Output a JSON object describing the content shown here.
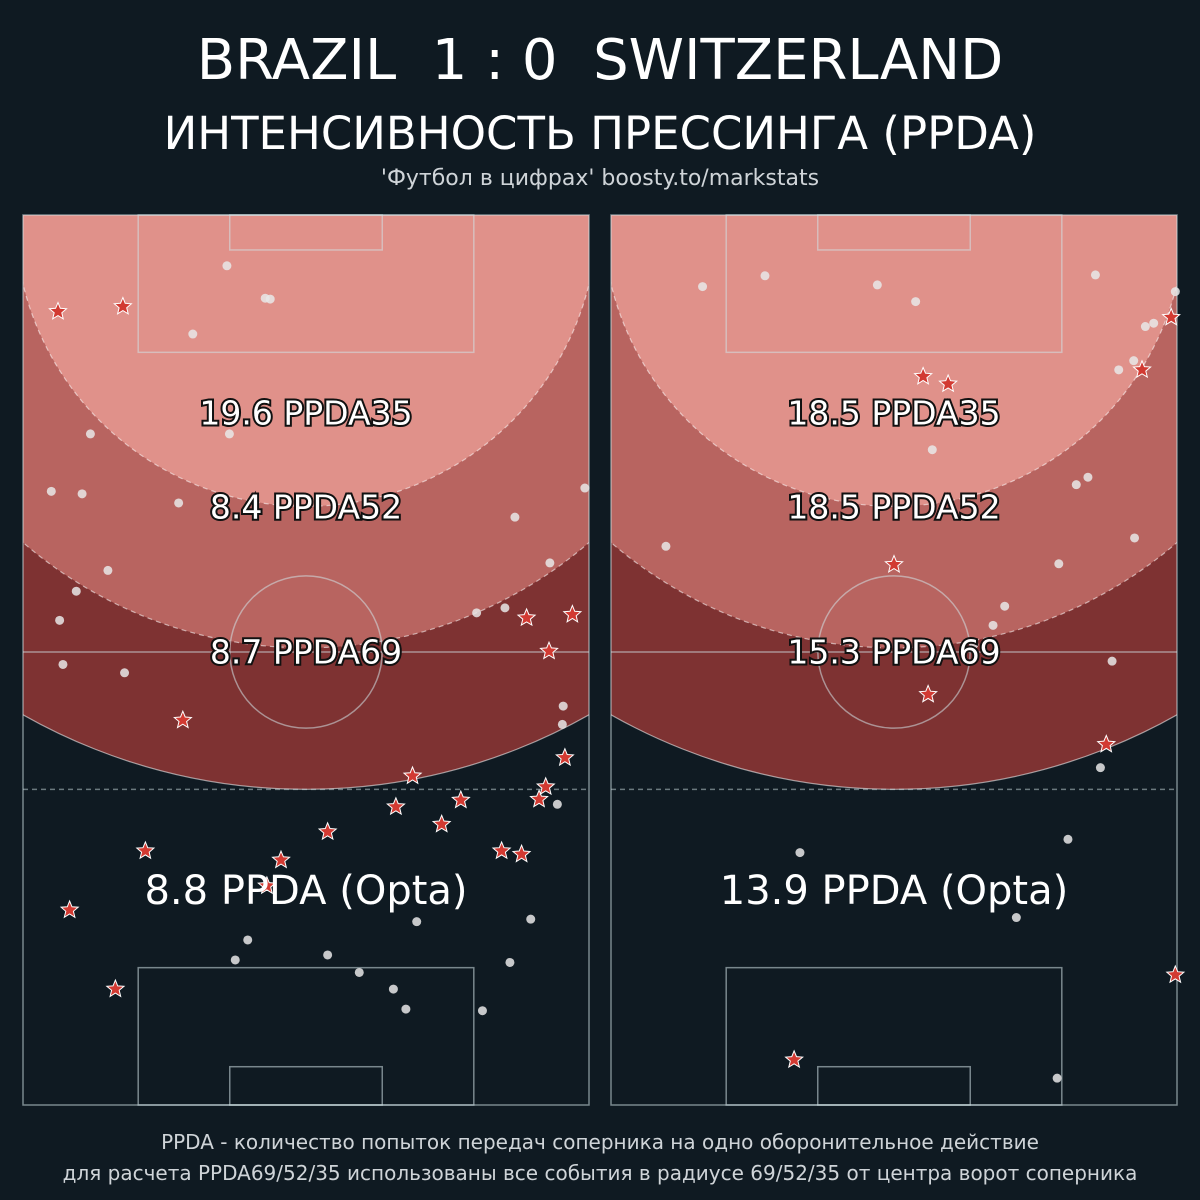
{
  "header": {
    "title": "BRAZIL  1 : 0  SWITZERLAND",
    "subtitle": "ИНТЕНСИВНОСТЬ ПРЕССИНГА (PPDA)",
    "credit": "'Футбол в цифрах' boosty.to/markstats"
  },
  "footer": {
    "line1": "PPDA - количество попыток передач соперника на одно оборонительное действие",
    "line2": "для расчета PPDA69/52/35 использованы все события в радиусе 69/52/35 от центра ворот соперника"
  },
  "colors": {
    "background": "#0f1a22",
    "zone35": "#e0918a",
    "zone52": "#b86460",
    "zone69": "#7e3232",
    "star": "#d23a32",
    "dot": "#e8e8e8"
  },
  "chart_data": [
    {
      "type": "scatter",
      "team": "Brazil",
      "zones": [
        {
          "label": "19.6 PPDA35",
          "value": 19.6,
          "radius": 35
        },
        {
          "label": "8.4 PPDA52",
          "value": 8.4,
          "radius": 52
        },
        {
          "label": "8.7 PPDA69",
          "value": 8.7,
          "radius": 69
        }
      ],
      "opta_label": "8.8 PPDA (Opta)",
      "opta_value": 8.8,
      "passes": [
        [
          24.5,
          6.1
        ],
        [
          29.1,
          10.0
        ],
        [
          29.7,
          10.1
        ],
        [
          20.4,
          14.3
        ],
        [
          8.1,
          26.3
        ],
        [
          24.8,
          26.3
        ],
        [
          3.4,
          33.2
        ],
        [
          7.1,
          33.5
        ],
        [
          18.7,
          34.6
        ],
        [
          59.1,
          36.3
        ],
        [
          67.5,
          32.8
        ],
        [
          63.3,
          41.8
        ],
        [
          57.9,
          47.2
        ],
        [
          54.5,
          47.8
        ],
        [
          10.2,
          42.7
        ],
        [
          6.4,
          45.2
        ],
        [
          4.4,
          48.7
        ],
        [
          4.8,
          54.0
        ],
        [
          12.2,
          55.0
        ],
        [
          64.9,
          59.0
        ],
        [
          64.8,
          61.2
        ],
        [
          64.2,
          70.8
        ],
        [
          61.0,
          84.6
        ],
        [
          47.3,
          84.9
        ],
        [
          58.5,
          89.8
        ],
        [
          46.0,
          95.4
        ],
        [
          44.5,
          93.0
        ],
        [
          40.4,
          91.0
        ],
        [
          36.6,
          88.9
        ],
        [
          27.0,
          87.1
        ],
        [
          25.5,
          89.5
        ],
        [
          55.2,
          95.6
        ]
      ],
      "defensive_actions": [
        [
          11.1,
          93.0
        ],
        [
          5.6,
          83.5
        ],
        [
          14.7,
          76.4
        ],
        [
          29.3,
          80.6
        ],
        [
          31.0,
          77.5
        ],
        [
          36.6,
          74.1
        ],
        [
          62.0,
          70.2
        ],
        [
          62.8,
          68.7
        ],
        [
          65.1,
          65.2
        ],
        [
          44.8,
          71.1
        ],
        [
          46.8,
          67.4
        ],
        [
          50.3,
          73.2
        ],
        [
          59.9,
          76.8
        ],
        [
          57.5,
          76.4
        ],
        [
          52.6,
          70.3
        ],
        [
          19.2,
          60.7
        ],
        [
          12.0,
          11.0
        ],
        [
          4.2,
          11.6
        ],
        [
          66.0,
          48.0
        ],
        [
          60.5,
          48.4
        ],
        [
          63.2,
          52.4
        ]
      ]
    },
    {
      "type": "scatter",
      "team": "Switzerland",
      "zones": [
        {
          "label": "18.5 PPDA35",
          "value": 18.5,
          "radius": 35
        },
        {
          "label": "18.5 PPDA52",
          "value": 18.5,
          "radius": 52
        },
        {
          "label": "15.3 PPDA69",
          "value": 15.3,
          "radius": 69
        }
      ],
      "opta_label": "13.9 PPDA (Opta)",
      "opta_value": 13.9,
      "passes": [
        [
          22.7,
          76.6
        ],
        [
          11.0,
          8.6
        ],
        [
          18.5,
          7.3
        ],
        [
          32.0,
          8.4
        ],
        [
          36.6,
          10.4
        ],
        [
          58.2,
          7.2
        ],
        [
          67.8,
          9.2
        ],
        [
          64.2,
          13.4
        ],
        [
          65.2,
          13.0
        ],
        [
          62.8,
          17.5
        ],
        [
          61.0,
          18.6
        ],
        [
          38.6,
          28.2
        ],
        [
          55.9,
          32.4
        ],
        [
          57.3,
          31.5
        ],
        [
          43.6,
          51.6
        ],
        [
          45.9,
          49.3
        ],
        [
          47.3,
          47.0
        ],
        [
          53.8,
          41.9
        ],
        [
          62.9,
          38.8
        ],
        [
          60.2,
          53.6
        ],
        [
          58.8,
          66.4
        ],
        [
          54.9,
          75.0
        ],
        [
          6.6,
          39.8
        ],
        [
          48.7,
          84.4
        ],
        [
          53.6,
          103.7
        ]
      ],
      "defensive_actions": [
        [
          22.0,
          101.5
        ],
        [
          38.1,
          57.6
        ],
        [
          34.0,
          42.0
        ],
        [
          40.5,
          20.3
        ],
        [
          37.5,
          19.4
        ],
        [
          59.5,
          63.6
        ],
        [
          63.8,
          18.6
        ],
        [
          67.3,
          12.3
        ],
        [
          67.8,
          91.3
        ]
      ]
    }
  ]
}
